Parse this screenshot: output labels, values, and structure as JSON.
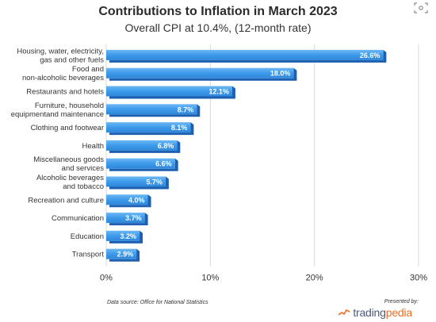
{
  "header": {
    "title": "Contributions to Inflation in March 2023",
    "subtitle": "Overall CPI at 10.4%, (12-month rate)"
  },
  "footer": {
    "source": "Data source: Office for National Statistics",
    "presented_by": "Presented by:",
    "brand_prefix": "trading",
    "brand_suffix": "pedia"
  },
  "colors": {
    "bar": "#3d9aea",
    "bar_dark": "#1d5fb0",
    "grid": "#d9d9d9",
    "label_text": "#333333",
    "brand_trading": "#4a5a78",
    "brand_pedia": "#f26b21"
  },
  "icons": {
    "corner": "image-scan-icon",
    "brand": "trend-line-icon"
  },
  "chart_data": {
    "type": "bar",
    "orientation": "horizontal",
    "title": "Contributions to Inflation in March 2023",
    "subtitle": "Overall CPI at 10.4%, (12-month rate)",
    "categories": [
      "Housing, water, electricity,\ngas and other fuels",
      "Food and\nnon-alcoholic beverages",
      "Restaurants and hotels",
      "Furniture, household\nequipmentand maintenance",
      "Clothing and footwear",
      "Health",
      "Miscellaneous goods\nand services",
      "Alcoholic beverages\nand tobacco",
      "Recreation and culture",
      "Communication",
      "Education",
      "Transport"
    ],
    "values": [
      26.6,
      18.0,
      12.1,
      8.7,
      8.1,
      6.8,
      6.6,
      5.7,
      4.0,
      3.7,
      3.2,
      2.9
    ],
    "value_labels": [
      "26.6%",
      "18.0%",
      "12.1%",
      "8.7%",
      "8.1%",
      "6.8%",
      "6.6%",
      "5.7%",
      "4.0%",
      "3.7%",
      "3.2%",
      "2.9%"
    ],
    "xlim": [
      0,
      30
    ],
    "xticks": [
      0,
      10,
      20,
      30
    ],
    "xtick_labels": [
      "0%",
      "10%",
      "20%",
      "30%"
    ],
    "grid": true,
    "legend": "none"
  }
}
